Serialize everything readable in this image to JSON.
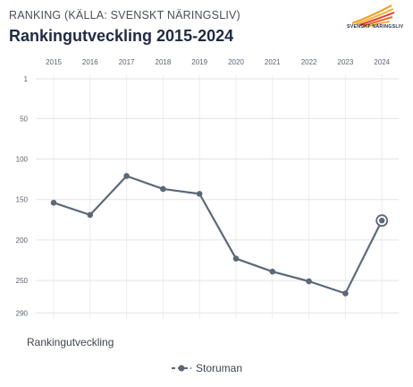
{
  "header": {
    "supertitle": "RANKING (KÄLLA: SVENSKT NÄRINGSLIV)",
    "title": "Rankingutveckling 2015-2024",
    "logo_text": "SVENSKT NÄRINGSLIV"
  },
  "section_label": "Rankingutveckling",
  "colors": {
    "series": "#5c6878",
    "logo_orange": "#f29a1f",
    "logo_red": "#e3342a"
  },
  "chart_data": {
    "type": "line",
    "title": "Rankingutveckling 2015-2024",
    "x": [
      "2015",
      "2016",
      "2017",
      "2018",
      "2019",
      "2020",
      "2021",
      "2022",
      "2023",
      "2024"
    ],
    "series": [
      {
        "name": "Storuman",
        "values": [
          154,
          169,
          121,
          137,
          143,
          223,
          239,
          251,
          266,
          176
        ]
      }
    ],
    "y_ticks": [
      1,
      50,
      100,
      150,
      200,
      250,
      290
    ],
    "ylim": [
      1,
      290
    ],
    "y_inverted": true,
    "x_axis_position": "top",
    "grid": true,
    "legend": "bottom-center",
    "highlighted_point": "2024"
  }
}
